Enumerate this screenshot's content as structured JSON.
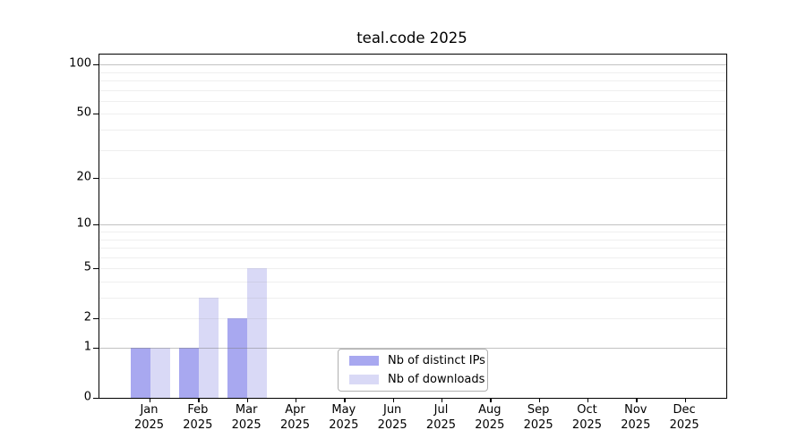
{
  "chart_data": {
    "type": "bar",
    "title": "teal.code 2025",
    "categories": [
      "Jan",
      "Feb",
      "Mar",
      "Apr",
      "May",
      "Jun",
      "Jul",
      "Aug",
      "Sep",
      "Oct",
      "Nov",
      "Dec"
    ],
    "year_label": "2025",
    "series": [
      {
        "name": "Nb of distinct IPs",
        "color": "#a8a8f0",
        "values": [
          1,
          1,
          2,
          0,
          0,
          0,
          0,
          0,
          0,
          0,
          0,
          0
        ]
      },
      {
        "name": "Nb of downloads",
        "color": "#d9d9f6",
        "values": [
          1,
          3,
          5,
          0,
          0,
          0,
          0,
          0,
          0,
          0,
          0,
          0
        ]
      }
    ],
    "xlabel": "",
    "ylabel": "",
    "y_axis": {
      "scale": "log1p",
      "tick_labels": [
        0,
        1,
        2,
        5,
        10,
        20,
        50,
        100
      ],
      "major_gridlines": [
        1,
        10,
        100
      ],
      "minor_gridlines": [
        2,
        3,
        4,
        5,
        6,
        7,
        8,
        9,
        20,
        30,
        40,
        50,
        60,
        70,
        80,
        90
      ],
      "ylim": [
        0,
        115
      ]
    },
    "grid": "horizontal, major and minor, drawn above bars",
    "legend_position": "lower center"
  },
  "colors": {
    "grid_major": "rgba(120,120,120,0.45)",
    "grid_minor": "rgba(130,130,130,0.13)",
    "spine": "#000000"
  }
}
